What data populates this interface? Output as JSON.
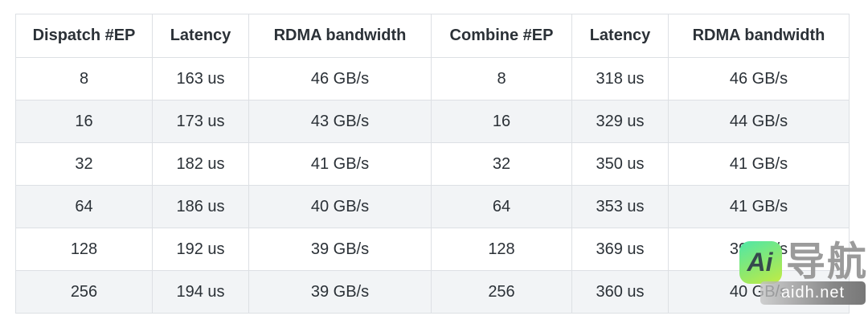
{
  "table": {
    "headers": [
      "Dispatch #EP",
      "Latency",
      "RDMA bandwidth",
      "Combine #EP",
      "Latency",
      "RDMA bandwidth"
    ],
    "rows": [
      [
        "8",
        "163 us",
        "46 GB/s",
        "8",
        "318 us",
        "46 GB/s"
      ],
      [
        "16",
        "173 us",
        "43 GB/s",
        "16",
        "329 us",
        "44 GB/s"
      ],
      [
        "32",
        "182 us",
        "41 GB/s",
        "32",
        "350 us",
        "41 GB/s"
      ],
      [
        "64",
        "186 us",
        "40 GB/s",
        "64",
        "353 us",
        "41 GB/s"
      ],
      [
        "128",
        "192 us",
        "39 GB/s",
        "128",
        "369 us",
        "39 GB/s"
      ],
      [
        "256",
        "194 us",
        "39 GB/s",
        "256",
        "360 us",
        "40 GB/s"
      ]
    ],
    "stripe_color": "#f2f4f6",
    "border_color": "#dde0e4",
    "text_color": "#2b3137"
  },
  "watermark": {
    "logo_text": "Ai",
    "brand_text": "导航",
    "domain_text": "aidh.net",
    "logo_gradient_start": "#4fe7a8",
    "logo_gradient_end": "#c3ec43",
    "brand_color": "#969696"
  },
  "chart_data": {
    "type": "table",
    "columns": [
      "Dispatch #EP",
      "Latency",
      "RDMA bandwidth",
      "Combine #EP",
      "Latency",
      "RDMA bandwidth"
    ],
    "rows": [
      [
        "8",
        "163 us",
        "46 GB/s",
        "8",
        "318 us",
        "46 GB/s"
      ],
      [
        "16",
        "173 us",
        "43 GB/s",
        "16",
        "329 us",
        "44 GB/s"
      ],
      [
        "32",
        "182 us",
        "41 GB/s",
        "32",
        "350 us",
        "41 GB/s"
      ],
      [
        "64",
        "186 us",
        "40 GB/s",
        "64",
        "353 us",
        "41 GB/s"
      ],
      [
        "128",
        "192 us",
        "39 GB/s",
        "128",
        "369 us",
        "39 GB/s"
      ],
      [
        "256",
        "194 us",
        "39 GB/s",
        "256",
        "360 us",
        "40 GB/s"
      ]
    ],
    "dispatch": {
      "num_ep": [
        8,
        16,
        32,
        64,
        128,
        256
      ],
      "latency_us": [
        163,
        173,
        182,
        186,
        192,
        194
      ],
      "rdma_bandwidth_gb_s": [
        46,
        43,
        41,
        40,
        39,
        39
      ]
    },
    "combine": {
      "num_ep": [
        8,
        16,
        32,
        64,
        128,
        256
      ],
      "latency_us": [
        318,
        329,
        350,
        353,
        369,
        360
      ],
      "rdma_bandwidth_gb_s": [
        46,
        44,
        41,
        41,
        39,
        40
      ]
    }
  }
}
